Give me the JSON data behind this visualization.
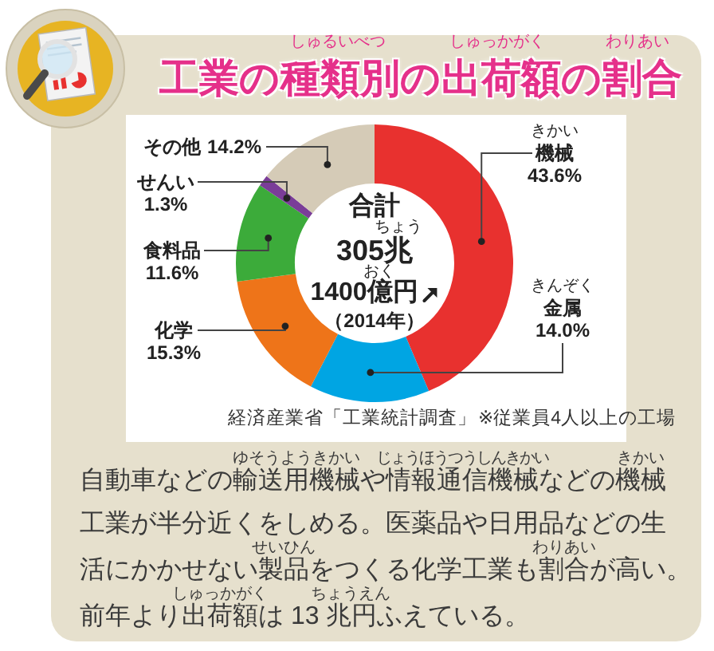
{
  "chart_data": {
    "type": "donut",
    "title": "工業の種類別の出荷額の割合",
    "categories": [
      "機械",
      "金属",
      "化学",
      "食料品",
      "せんい",
      "その他"
    ],
    "values": [
      43.6,
      14.0,
      15.3,
      11.6,
      1.3,
      14.2
    ],
    "colors": [
      "#e8312f",
      "#00a5e3",
      "#ee7419",
      "#3cab3a",
      "#7a3d98",
      "#d5cbb7"
    ],
    "value_labels": [
      "43.6%",
      "14.0%",
      "15.3%",
      "11.6%",
      "1.3%",
      "14.2%"
    ],
    "annotations": [
      "合計",
      "305兆",
      "1400億円",
      "（2014年）",
      "経済産業省「工業統計調査」",
      "※従業員4人以上の工場",
      "自動車などの輸送用機械や情報通信機械などの機械",
      "工業が半分近くをしめる。医薬品や日用品などの生",
      "活にかかせない製品をつくる化学工業も割合が高い。",
      "前年より出荷額は 13 兆円ふえている。",
      "しゅるいべつ",
      "しゅっかがく",
      "わりあい",
      "きかい",
      "きんぞく",
      "ちょう",
      "おく",
      "ゆそうようきかい",
      "じょうほうつうしんきかい",
      "きかい",
      "せいひん",
      "わりあい",
      "しゅっかがく",
      "ちょうえん"
    ]
  }
}
